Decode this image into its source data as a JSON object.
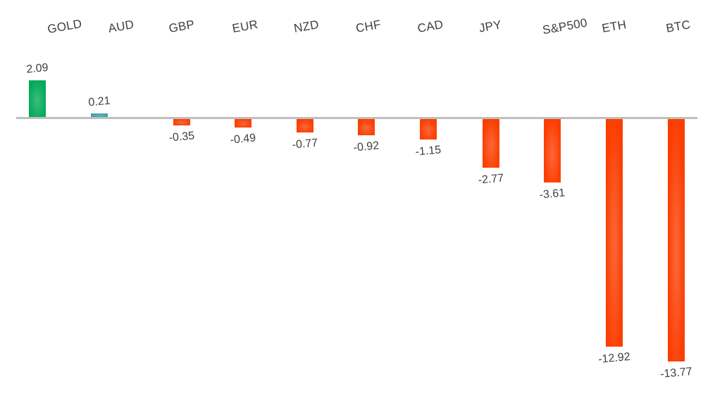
{
  "chart_data": {
    "type": "bar",
    "title": "",
    "xlabel": "",
    "ylabel": "",
    "categories": [
      "GOLD",
      "AUD",
      "GBP",
      "EUR",
      "NZD",
      "CHF",
      "CAD",
      "JPY",
      "S&P500",
      "ETH",
      "BTC"
    ],
    "values": [
      2.09,
      0.21,
      -0.35,
      -0.49,
      -0.77,
      -0.92,
      -1.15,
      -2.77,
      -3.61,
      -12.92,
      -13.77
    ],
    "value_labels": [
      "2.09",
      "0.21",
      "-0.35",
      "-0.49",
      "-0.77",
      "-0.92",
      "-1.15",
      "-2.77",
      "-3.61",
      "-12.92",
      "-13.77"
    ],
    "bar_colors": [
      "#04aa59",
      "#3a9fa6",
      "#fb3e02",
      "#fb3e02",
      "#fb3e02",
      "#fb3e02",
      "#fb3e02",
      "#fb3e02",
      "#fb3e02",
      "#fb3e02",
      "#fb3e02"
    ],
    "positive_color_gold": "#04aa59",
    "positive_color_small": "#3a9fa6",
    "negative_color": "#fb3e02",
    "axis_line_color": "#bfbfbf",
    "text_color": "#3f3f3f",
    "baseline": 0,
    "ylim": [
      -14.5,
      2.5
    ],
    "grid": false,
    "legend": false,
    "category_labels_position": "top",
    "value_labels_position": "outside-end",
    "label_rotation_deg": -10
  }
}
